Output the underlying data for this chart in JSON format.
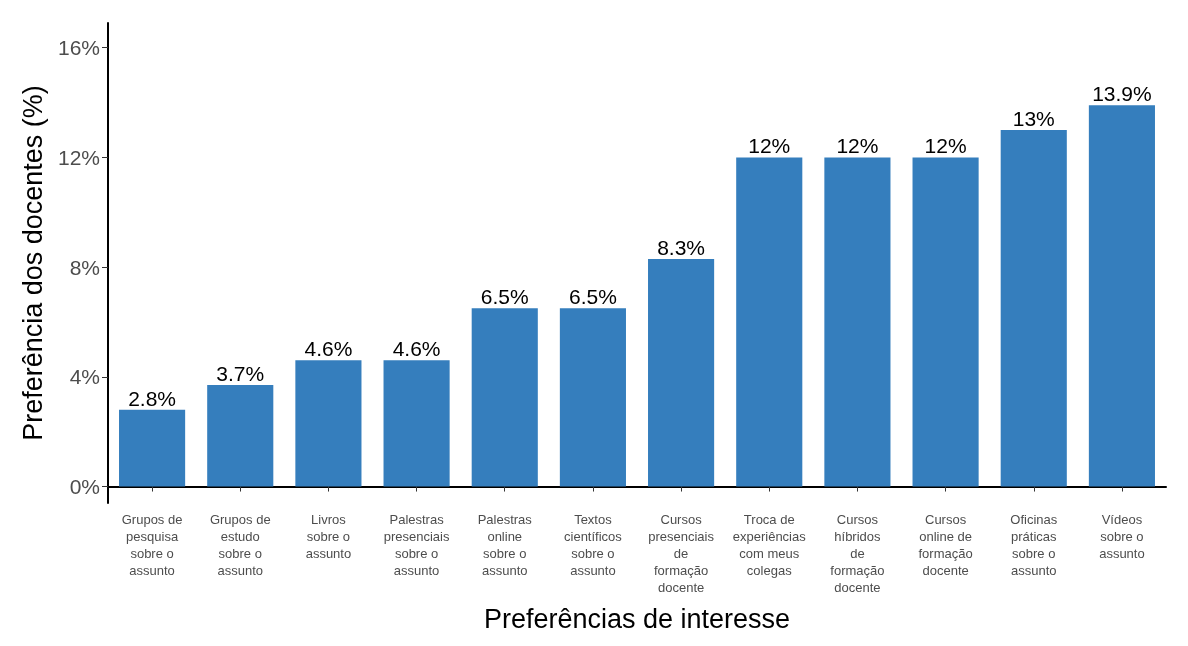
{
  "chart_data": {
    "type": "bar",
    "xlabel": "Preferências de interesse",
    "ylabel": "Preferência dos docentes (%)",
    "categories": [
      "Grupos de\npesquisa\nsobre o\nassunto",
      "Grupos de\nestudo\nsobre o\nassunto",
      "Livros\nsobre o\nassunto",
      "Palestras\npresenciais\nsobre o\nassunto",
      "Palestras\nonline\nsobre o\nassunto",
      "Textos\ncientíficos\nsobre o\nassunto",
      "Cursos\npresenciais\nde\nformação\ndocente",
      "Troca de\nexperiências\ncom meus\ncolegas",
      "Cursos\nhíbridos\nde\nformação\ndocente",
      "Cursos\nonline de\nformação\ndocente",
      "Oficinas\npráticas\nsobre o\nassunto",
      "Vídeos\nsobre o\nassunto"
    ],
    "values": [
      2.8,
      3.7,
      4.6,
      4.6,
      6.5,
      6.5,
      8.3,
      12,
      12,
      12,
      13,
      13.9
    ],
    "value_labels": [
      "2.8%",
      "3.7%",
      "4.6%",
      "4.6%",
      "6.5%",
      "6.5%",
      "8.3%",
      "12%",
      "12%",
      "12%",
      "13%",
      "13.9%"
    ],
    "color": "#357ebd",
    "ylim": [
      -0.6,
      16.9
    ],
    "yticks": [
      {
        "value": 0,
        "label": "0%"
      },
      {
        "value": 4,
        "label": "4%"
      },
      {
        "value": 8,
        "label": "8%"
      },
      {
        "value": 12,
        "label": "12%"
      },
      {
        "value": 16,
        "label": "16%"
      }
    ],
    "grid": false
  }
}
